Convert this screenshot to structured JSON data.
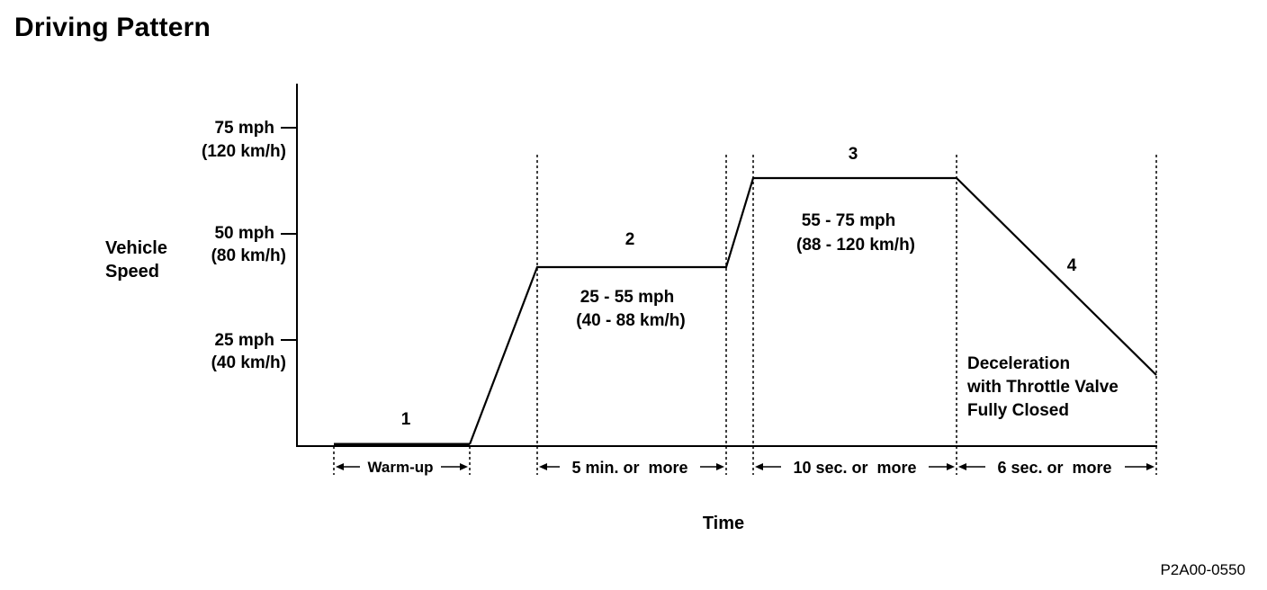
{
  "title": "Driving Pattern",
  "figure_id": "P2A00-0550",
  "y_axis_label": [
    "Vehicle",
    "Speed"
  ],
  "x_axis_label": "Time",
  "y_ticks": [
    {
      "mph": "75 mph",
      "kmh": "(120 km/h)"
    },
    {
      "mph": "50 mph",
      "kmh": "(80 km/h)"
    },
    {
      "mph": "25 mph",
      "kmh": "(40 km/h)"
    }
  ],
  "phases": [
    {
      "number": "1",
      "duration": "Warm-up",
      "range": []
    },
    {
      "number": "2",
      "duration": "5 min. or  more",
      "range": [
        "25 - 55 mph",
        "(40 - 88 km/h)"
      ]
    },
    {
      "number": "3",
      "duration": "10 sec. or  more",
      "range": [
        "55 - 75 mph",
        "(88 - 120 km/h)"
      ]
    },
    {
      "number": "4",
      "duration": "6 sec. or  more",
      "range": [
        "Deceleration",
        "with Throttle Valve",
        "Fully Closed"
      ]
    }
  ]
}
